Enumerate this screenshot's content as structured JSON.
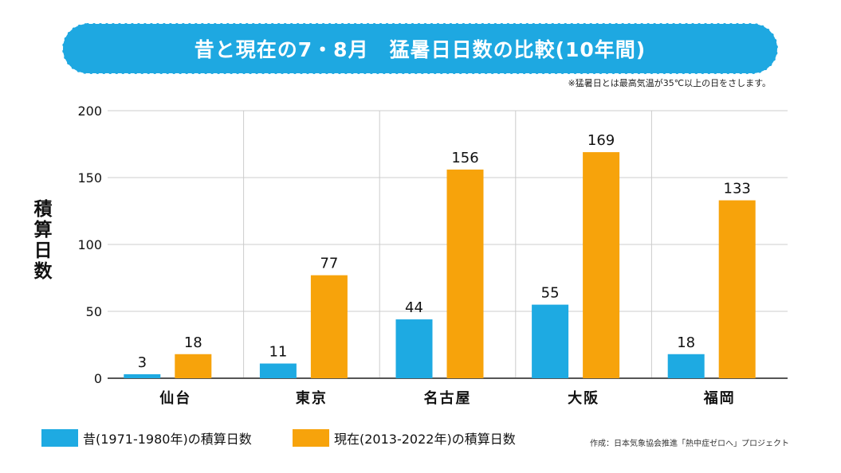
{
  "title": "昔と現在の7・8月　猛暑日日数の比較(10年間)",
  "note": "※猛暑日とは最高気温が35℃以上の日をさします。",
  "source": "作成：日本気象協会推進「熱中症ゼロへ」プロジェクト",
  "colors": {
    "past": "#1eaae2",
    "present": "#f7a30b",
    "banner": "#1ea8e1",
    "grid": "#cccccc"
  },
  "chart_data": {
    "type": "bar",
    "categories": [
      "仙台",
      "東京",
      "名古屋",
      "大阪",
      "福岡"
    ],
    "series": [
      {
        "name": "昔(1971-1980年)の積算日数",
        "values": [
          3,
          11,
          44,
          55,
          18
        ]
      },
      {
        "name": "現在(2013-2022年)の積算日数",
        "values": [
          18,
          77,
          156,
          169,
          133
        ]
      }
    ],
    "ylabel": "積算日数",
    "ylim": [
      0,
      200
    ],
    "yticks": [
      0,
      50,
      100,
      150,
      200
    ],
    "grid": true,
    "legend": "bottom"
  }
}
